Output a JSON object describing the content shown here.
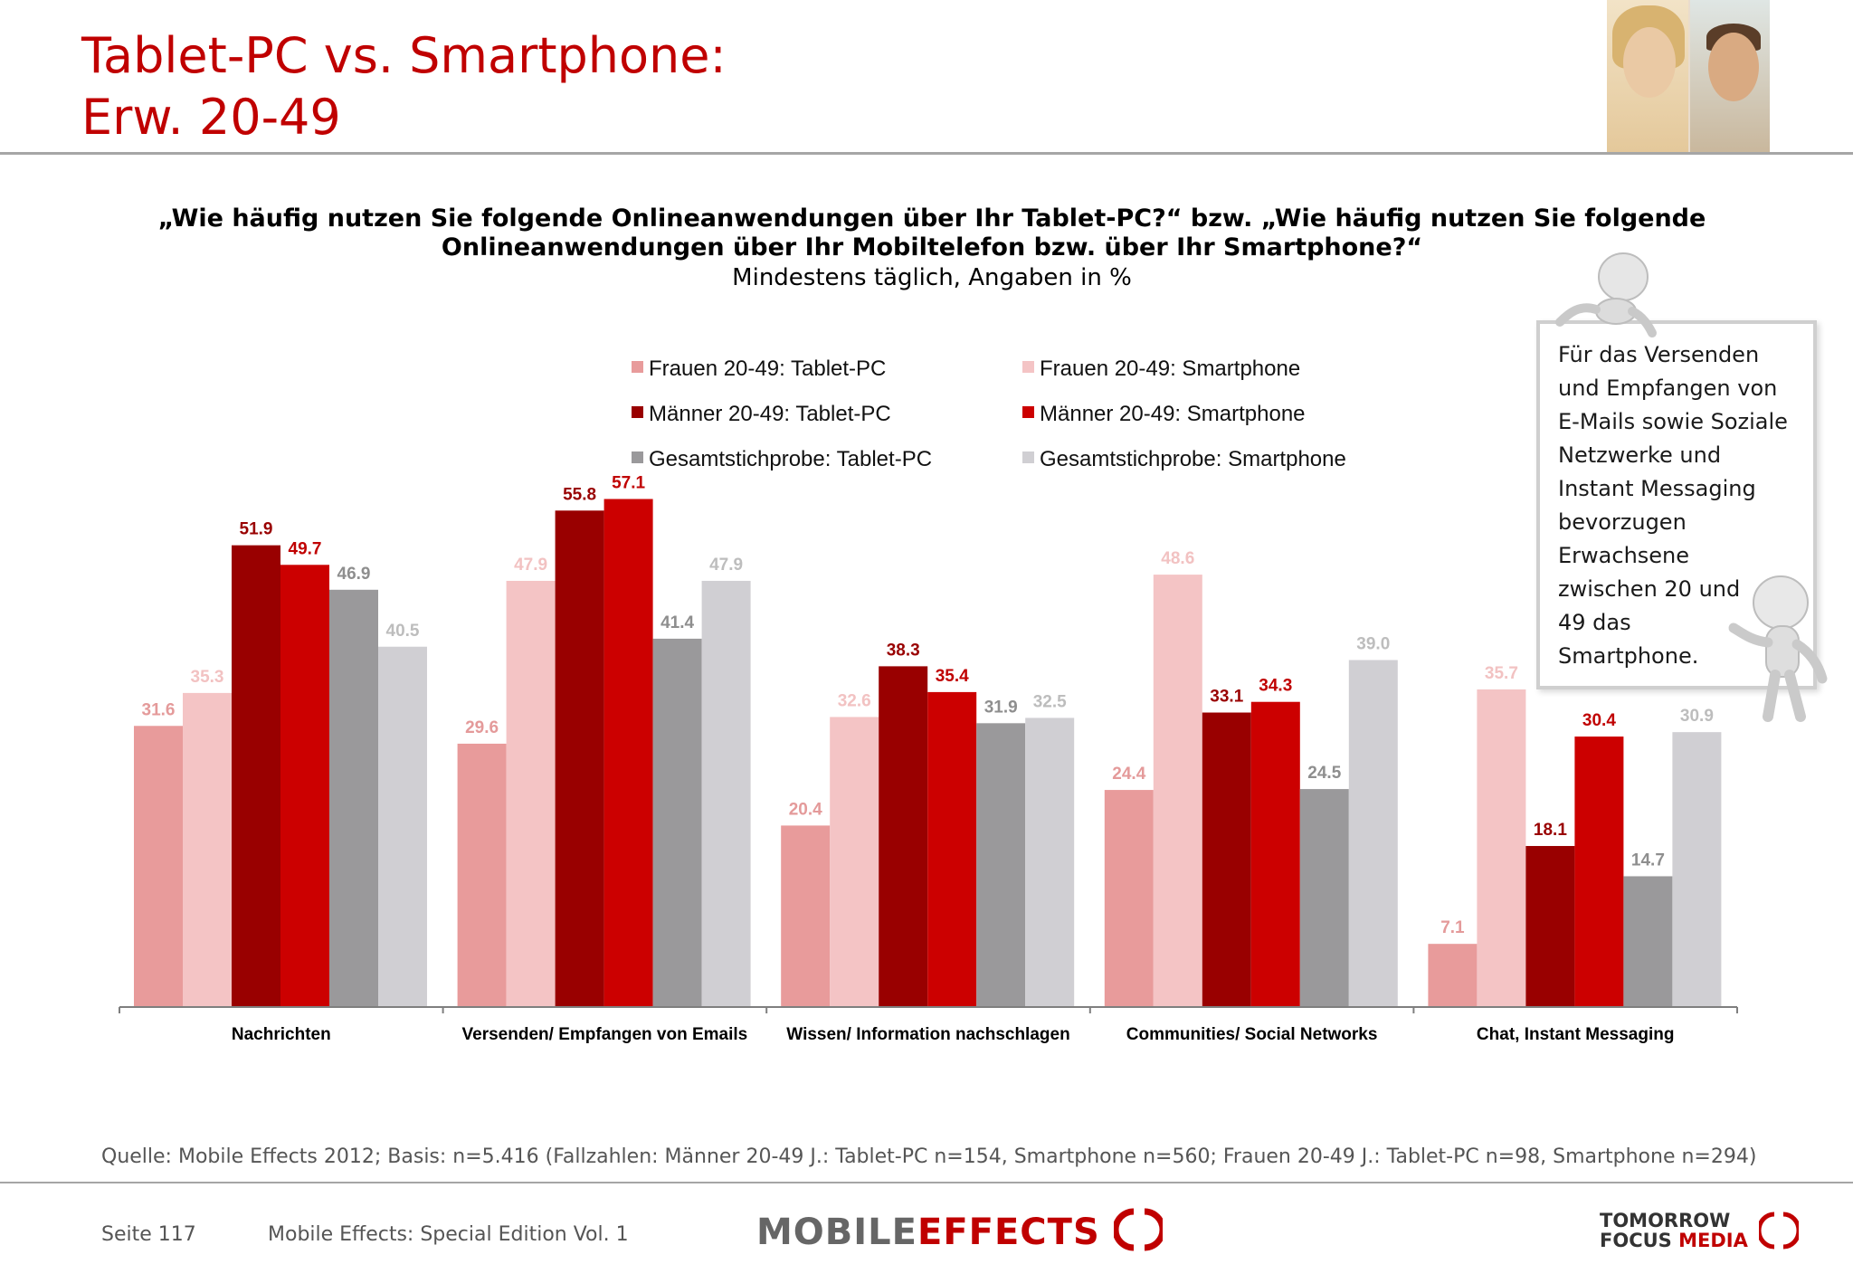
{
  "header": {
    "title_line1": "Tablet-PC vs. Smartphone:",
    "title_line2": "Erw. 20-49"
  },
  "question": {
    "line1": "„Wie häufig nutzen Sie folgende Onlineanwendungen über Ihr Tablet-PC?“ bzw. „Wie häufig nutzen Sie folgende",
    "line2": "Onlineanwendungen über Ihr Mobiltelefon bzw. über Ihr Smartphone?“",
    "subtitle": "Mindestens täglich, Angaben in %"
  },
  "note": {
    "lines": [
      "Für das Versenden",
      "und Empfangen von",
      "E-Mails sowie Soziale",
      "Netzwerke und",
      "Instant Messaging",
      "bevorzugen",
      "Erwachsene",
      "zwischen 20 und",
      "49 das",
      "Smartphone."
    ]
  },
  "footer": {
    "source": "Quelle: Mobile Effects 2012; Basis: n=5.416 (Fallzahlen: Männer 20-49 J.: Tablet-PC n=154, Smartphone n=560; Frauen 20-49 J.: Tablet-PC n=98, Smartphone n=294)",
    "page": "Seite 117",
    "edition": "Mobile Effects: Special Edition Vol. 1",
    "logo_mobile": "MOBILE",
    "logo_effects": "EFFECTS",
    "logo_tomorrow": "TOMORROW",
    "logo_focus": "FOCUS",
    "logo_media": "MEDIA"
  },
  "chart_data": {
    "type": "bar",
    "legend_position": "top",
    "grid": false,
    "ylim": [
      0,
      60
    ],
    "categories": [
      "Nachrichten",
      "Versenden/ Empfangen von Emails",
      "Wissen/ Information nachschlagen",
      "Communities/ Social Networks",
      "Chat, Instant Messaging"
    ],
    "series": [
      {
        "name": "Frauen 20-49: Tablet-PC",
        "color": "#e89b9b",
        "label_color": "#e49a9a",
        "values": [
          31.6,
          29.6,
          20.4,
          24.4,
          7.1
        ]
      },
      {
        "name": "Frauen 20-49: Smartphone",
        "color": "#f4c4c5",
        "label_color": "#f2c2c2",
        "values": [
          35.3,
          47.9,
          32.6,
          48.6,
          35.7
        ]
      },
      {
        "name": "Männer 20-49: Tablet-PC",
        "color": "#990000",
        "label_color": "#990000",
        "values": [
          51.9,
          55.8,
          38.3,
          33.1,
          18.1
        ]
      },
      {
        "name": "Männer 20-49: Smartphone",
        "color": "#cc0000",
        "label_color": "#c00000",
        "values": [
          49.7,
          57.1,
          35.4,
          34.3,
          30.4
        ]
      },
      {
        "name": "Gesamtstichprobe: Tablet-PC",
        "color": "#9a999b",
        "label_color": "#8e8e8e",
        "values": [
          46.9,
          41.4,
          31.9,
          24.5,
          14.7
        ]
      },
      {
        "name": "Gesamtstichprobe: Smartphone",
        "color": "#d0cfd3",
        "label_color": "#bdbdbd",
        "values": [
          40.5,
          47.9,
          32.5,
          39.0,
          30.9
        ]
      }
    ]
  }
}
